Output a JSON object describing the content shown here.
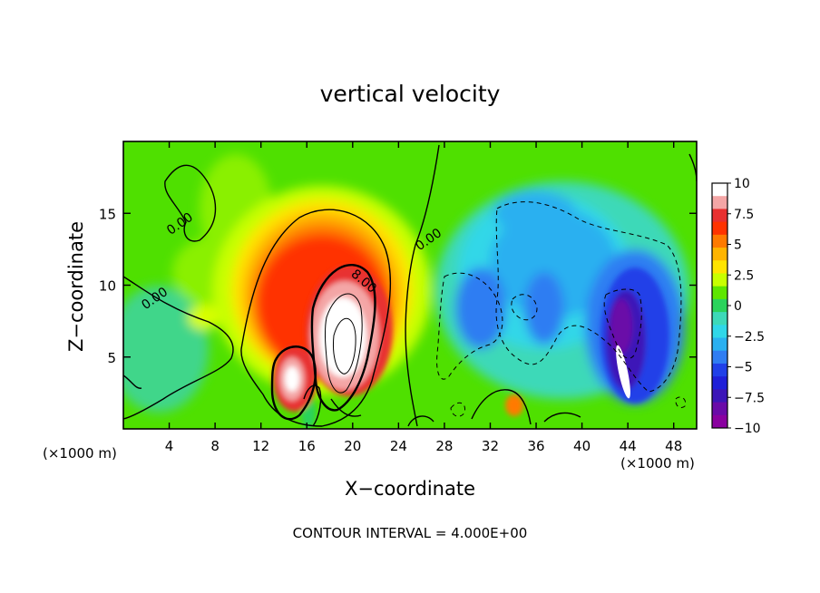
{
  "chart_data": {
    "type": "heatmap",
    "title": "vertical velocity",
    "xlabel": "X−coordinate",
    "ylabel": "Z−coordinate",
    "x_unit_label": "(×1000 m)",
    "x_unit_label_right": "(×1000 m)",
    "footer": "CONTOUR INTERVAL =  4.000E+00",
    "xlim": [
      0,
      50
    ],
    "ylim": [
      0,
      20
    ],
    "x_ticks": [
      4,
      8,
      12,
      16,
      20,
      24,
      28,
      32,
      36,
      40,
      44,
      48
    ],
    "y_ticks": [
      5,
      10,
      15
    ],
    "colorbar": {
      "range": [
        -10,
        10
      ],
      "ticks": [
        "10",
        "7.5",
        "5",
        "2.5",
        "0",
        "−2.5",
        "−5",
        "−7.5",
        "−10"
      ],
      "colors": [
        "#ffffff",
        "#f4a6a6",
        "#e83030",
        "#ff3300",
        "#ff7a00",
        "#ffb400",
        "#ffe400",
        "#c8ff00",
        "#5ee600",
        "#2ad35c",
        "#3dd9b8",
        "#30d7e8",
        "#2ab0f0",
        "#2f7df2",
        "#2040e8",
        "#1f1fd8",
        "#3c16b8",
        "#6a0aa8",
        "#8a00a0"
      ]
    },
    "contour_labels": [
      {
        "text": "0.00",
        "x": 4.9,
        "z": 14.3
      },
      {
        "text": "0.00",
        "x": 2.7,
        "z": 9.1
      },
      {
        "text": "0.00",
        "x": 26.6,
        "z": 13.2
      },
      {
        "text": "8.00",
        "x": 21.0,
        "z": 10.3
      }
    ],
    "features": [
      {
        "name": "updraft-main",
        "x": 19.3,
        "z": 7.2,
        "w": 10.2
      },
      {
        "name": "updraft-secondary",
        "x": 14.6,
        "z": 3.8,
        "w": 10.0
      },
      {
        "name": "downdraft-core",
        "x": 43.4,
        "z": 5.4,
        "w": -10.0
      },
      {
        "name": "downdraft-mid",
        "x": 30.8,
        "z": 8.6,
        "w": -5.5
      },
      {
        "name": "downdraft-upper",
        "x": 34.5,
        "z": 13.0,
        "w": -4.0
      }
    ]
  }
}
